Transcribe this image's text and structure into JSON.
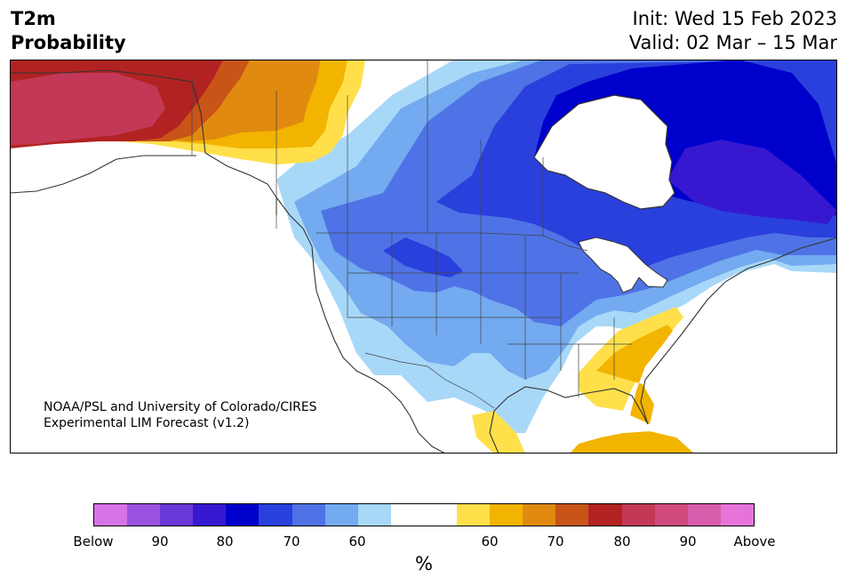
{
  "title": {
    "line1": "T2m",
    "line2": "Probability"
  },
  "header": {
    "init": "Init: Wed 15 Feb 2023",
    "valid": "Valid: 02 Mar – 15 Mar"
  },
  "credit": {
    "line1": "NOAA/PSL and University of Colorado/CIRES",
    "line2": "Experimental LIM Forecast (v1.2)"
  },
  "colorbar": {
    "colors": [
      "#d673e6",
      "#9a52e0",
      "#6a38d6",
      "#3618d0",
      "#0000cc",
      "#2a40dc",
      "#4f73e6",
      "#73aaf0",
      "#a8d8f8",
      "#ffffff",
      "#ffffff",
      "#ffe04a",
      "#f2b400",
      "#e08a10",
      "#c85418",
      "#b22222",
      "#c23856",
      "#d04a7e",
      "#d85cac",
      "#e674d8"
    ],
    "tick_labels": [
      "Below",
      "90",
      "80",
      "70",
      "60",
      "60",
      "70",
      "80",
      "90",
      "Above"
    ],
    "unit": "%"
  },
  "map": {
    "colors": {
      "b60": "#a8d8f8",
      "b70": "#73aaf0",
      "b80": "#4f73e6",
      "b85": "#2a40dc",
      "b90": "#0000cc",
      "b95": "#3618d0",
      "a60": "#ffe04a",
      "a70": "#f2b400",
      "a75": "#e08a10",
      "a80": "#c85418",
      "a85": "#b22222",
      "a90": "#c23856"
    }
  }
}
